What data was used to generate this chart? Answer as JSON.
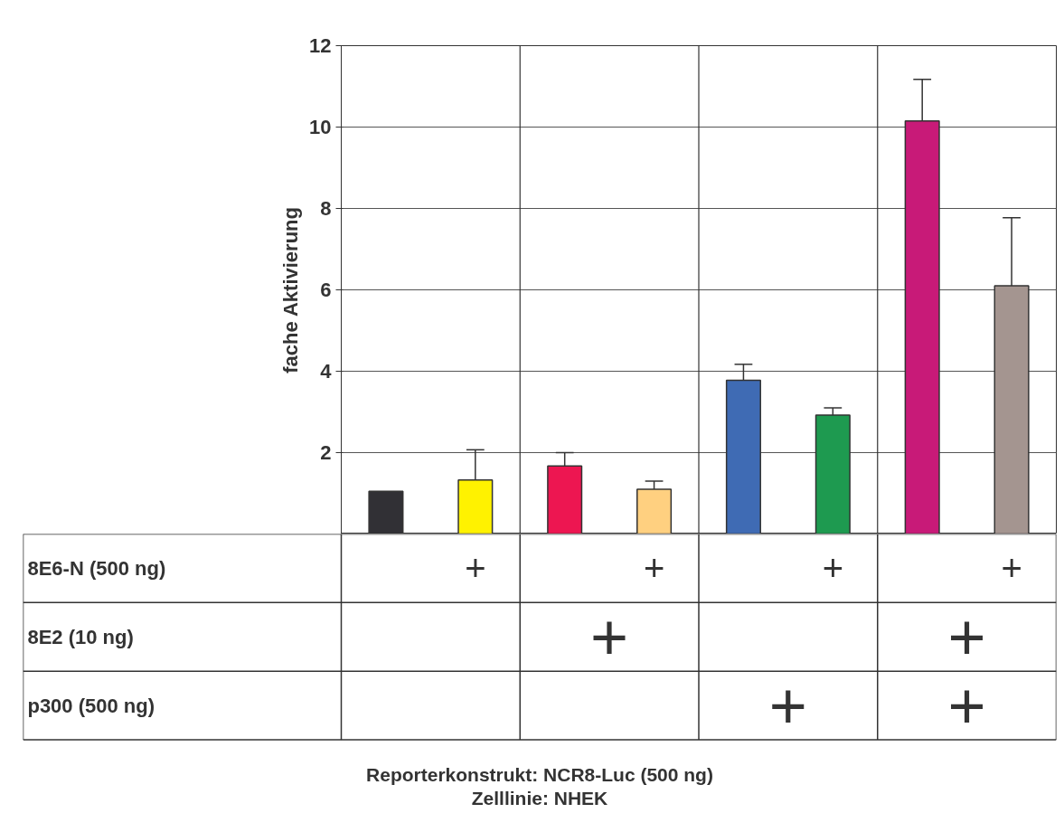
{
  "chart_data": {
    "type": "bar",
    "categories": [
      null,
      null,
      null,
      null,
      null,
      null,
      null,
      null
    ],
    "values": [
      1.05,
      1.33,
      1.67,
      1.1,
      3.78,
      2.92,
      10.15,
      6.1
    ],
    "colors": [
      "#313035",
      "#fff200",
      "#ed1651",
      "#ffd080",
      "#3f6bb4",
      "#1e9a50",
      "#c81a78",
      "#a49590"
    ],
    "errors": [
      null,
      [
        1.33,
        2.07
      ],
      [
        1.67,
        2.0
      ],
      [
        1.1,
        1.3
      ],
      [
        3.78,
        4.17
      ],
      [
        2.92,
        3.1
      ],
      [
        10.15,
        11.17
      ],
      [
        6.1,
        7.77
      ]
    ],
    "ylabel": "fache Aktivierung",
    "ylim": [
      0,
      12
    ],
    "yticks": [
      2,
      4,
      6,
      8,
      10,
      12
    ],
    "grid": "y",
    "annotations": [
      "8E6-N (500 ng)",
      "8E2 (10 ng)",
      "p300 (500 ng)",
      "+",
      "+",
      "+",
      "+",
      "+",
      "+",
      "+",
      "+",
      "Reporterkonstrukt: NCR8-Luc (500 ng)",
      "Zelllinie: NHEK"
    ]
  }
}
